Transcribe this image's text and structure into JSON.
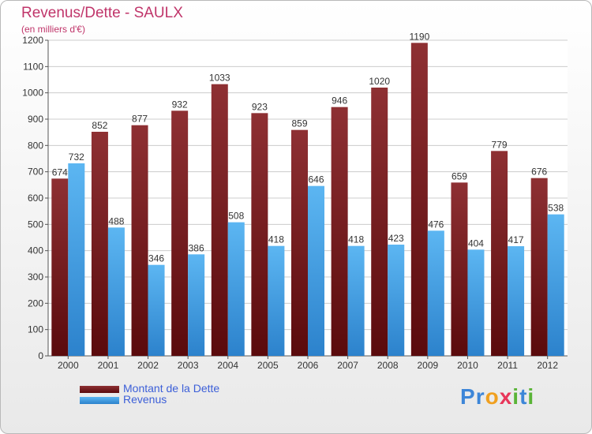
{
  "chart_data": {
    "type": "bar",
    "title": "Revenus/Dette - SAULX",
    "subtitle": "(en milliers d'€)",
    "categories": [
      "2000",
      "2001",
      "2002",
      "2003",
      "2004",
      "2005",
      "2006",
      "2007",
      "2008",
      "2009",
      "2010",
      "2011",
      "2012"
    ],
    "series": [
      {
        "name": "Montant de la Dette",
        "values": [
          674,
          852,
          877,
          932,
          1033,
          923,
          859,
          946,
          1020,
          1190,
          659,
          779,
          676
        ],
        "color": "#6e1416"
      },
      {
        "name": "Revenus",
        "values": [
          732,
          488,
          346,
          386,
          508,
          418,
          646,
          418,
          423,
          476,
          404,
          417,
          538
        ],
        "color": "#3d9ae0"
      }
    ],
    "ylim": [
      0,
      1200
    ],
    "yticks": [
      0,
      100,
      200,
      300,
      400,
      500,
      600,
      700,
      800,
      900,
      1000,
      1100,
      1200
    ],
    "grid": true,
    "legend_position": "bottom-left"
  },
  "logo": {
    "letters": [
      {
        "ch": "P",
        "color": "#3d86d8"
      },
      {
        "ch": "r",
        "color": "#3d86d8"
      },
      {
        "ch": "o",
        "color": "#f0a020"
      },
      {
        "ch": "x",
        "color": "#e8365a"
      },
      {
        "ch": "i",
        "color": "#5ab437"
      },
      {
        "ch": "t",
        "color": "#3d86d8"
      },
      {
        "ch": "i",
        "color": "#5ab437"
      }
    ]
  }
}
